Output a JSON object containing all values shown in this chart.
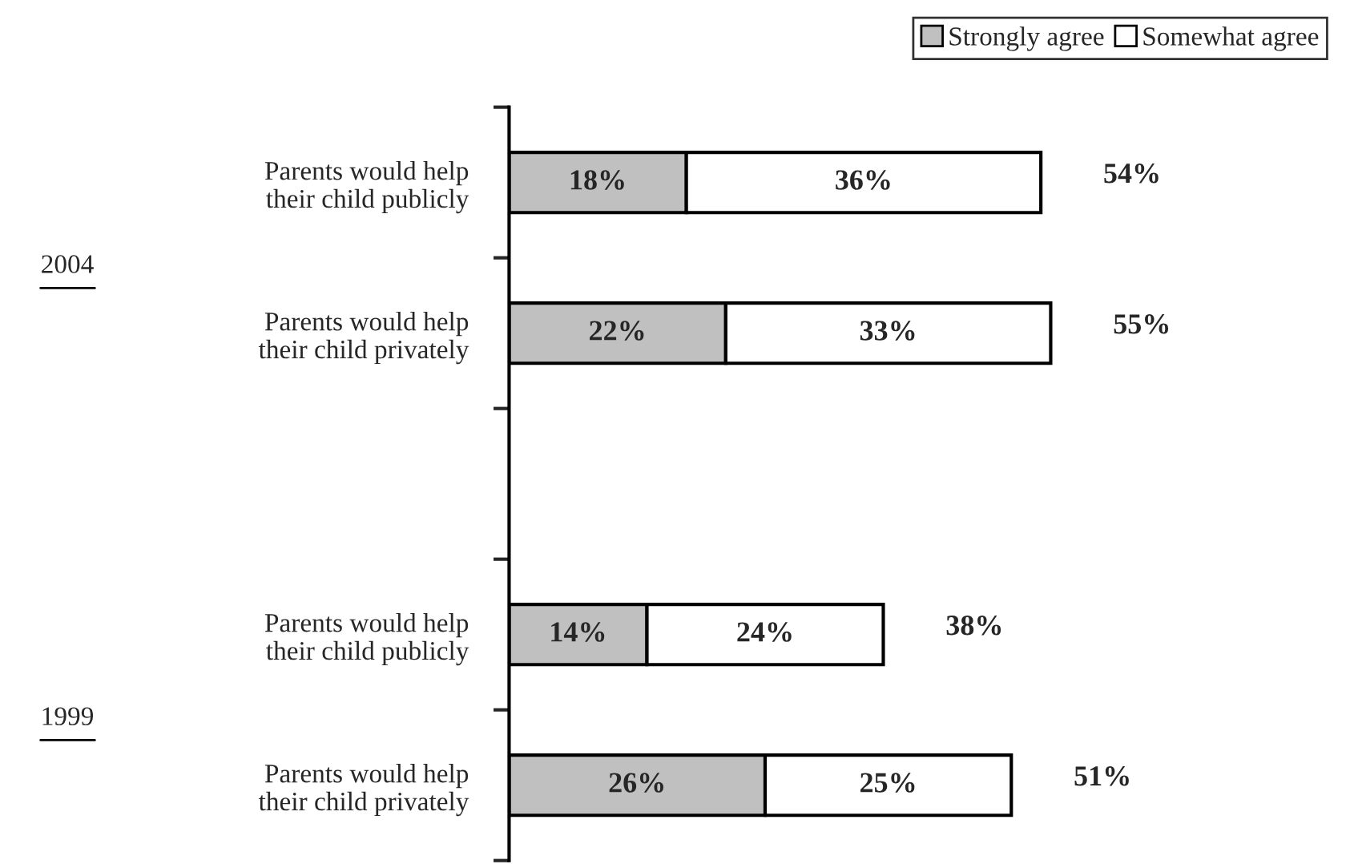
{
  "chart_data": {
    "type": "bar",
    "orientation": "horizontal",
    "stacked": true,
    "categories": [
      "Parents would help\ntheir child publicly",
      "Parents would help\ntheir child privately",
      null,
      "Parents would help\ntheir child publicly",
      "Parents would help\ntheir child privately"
    ],
    "series": [
      {
        "name": "Strongly agree",
        "color": "#c0c0c0",
        "values": [
          18,
          22,
          null,
          14,
          26
        ],
        "value_labels": [
          "18%",
          "22%",
          null,
          "14%",
          "26%"
        ]
      },
      {
        "name": "Somewhat agree",
        "color": "#ffffff",
        "values": [
          36,
          33,
          null,
          24,
          25
        ],
        "value_labels": [
          "36%",
          "33%",
          null,
          "24%",
          "25%"
        ]
      }
    ],
    "totals": [
      "54%",
      "55%",
      null,
      "38%",
      "51%"
    ],
    "annotations": [
      "2004",
      "1999"
    ],
    "legend": "top right",
    "grid": false,
    "tick_labels": "y"
  }
}
